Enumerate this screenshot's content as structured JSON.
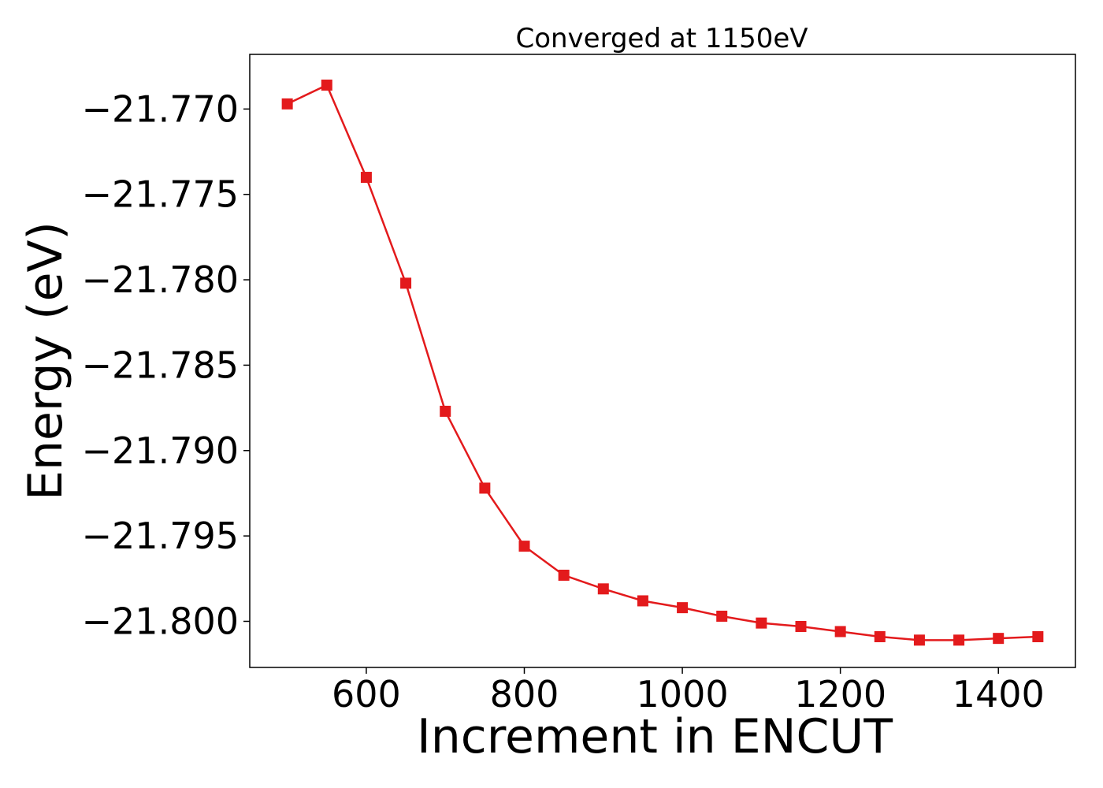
{
  "chart_data": {
    "type": "line",
    "title": "Converged at 1150eV",
    "xlabel": "Increment in ENCUT",
    "ylabel": "Energy (eV)",
    "xlim": [
      452.5,
      1497.5
    ],
    "ylim": [
      -21.8027,
      -21.7668
    ],
    "x_ticks": [
      600,
      800,
      1000,
      1200,
      1400
    ],
    "x_tick_labels": [
      "600",
      "800",
      "1000",
      "1200",
      "1400"
    ],
    "y_ticks": [
      -21.77,
      -21.775,
      -21.78,
      -21.785,
      -21.79,
      -21.795,
      -21.8
    ],
    "y_tick_labels": [
      "−21.770",
      "−21.775",
      "−21.780",
      "−21.785",
      "−21.790",
      "−21.795",
      "−21.800"
    ],
    "grid": false,
    "series": [
      {
        "color": "#e31a1c",
        "marker": "square",
        "x": [
          500,
          550,
          600,
          650,
          700,
          750,
          800,
          850,
          900,
          950,
          1000,
          1050,
          1100,
          1150,
          1200,
          1250,
          1300,
          1350,
          1400,
          1450
        ],
        "y": [
          -21.7697,
          -21.7686,
          -21.774,
          -21.7802,
          -21.7877,
          -21.7922,
          -21.7956,
          -21.7973,
          -21.7981,
          -21.7988,
          -21.7992,
          -21.7997,
          -21.8001,
          -21.8003,
          -21.8006,
          -21.8009,
          -21.8011,
          -21.8011,
          -21.801,
          -21.8009
        ]
      }
    ]
  }
}
